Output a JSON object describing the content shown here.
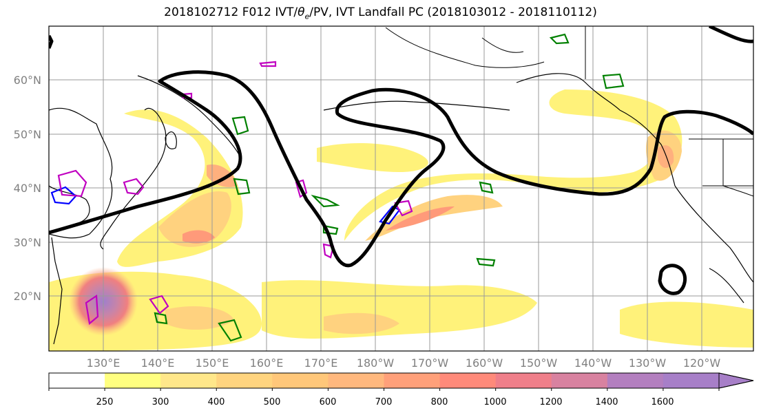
{
  "title": {
    "part1": "2018102712 F012 IVT/",
    "theta": "θ",
    "sub": "e",
    "part2": "/PV, IVT Landfall PC (2018103012 - 2018110112)"
  },
  "map": {
    "lat_labels": [
      "60°N",
      "50°N",
      "40°N",
      "30°N",
      "20°N"
    ],
    "lon_labels": [
      "130°E",
      "140°E",
      "150°E",
      "160°E",
      "170°E",
      "180°W",
      "170°W",
      "160°W",
      "150°W",
      "140°W",
      "130°W",
      "120°W"
    ]
  },
  "colorbar": {
    "levels": [
      "250",
      "300",
      "400",
      "500",
      "600",
      "700",
      "800",
      "1000",
      "1200",
      "1400",
      "1600"
    ],
    "colors": [
      "#ffffff",
      "#ffff80",
      "#ffe78a",
      "#ffd47f",
      "#ffc77a",
      "#ffb87e",
      "#ffa07a",
      "#ff8a7a",
      "#ef7f8a",
      "#d882a0",
      "#b37fbf",
      "#a77fc8"
    ]
  },
  "colors": {
    "contour_black": "#000000",
    "contour_green": "#008000",
    "contour_blue": "#0000ff",
    "contour_magenta": "#c000c0"
  }
}
